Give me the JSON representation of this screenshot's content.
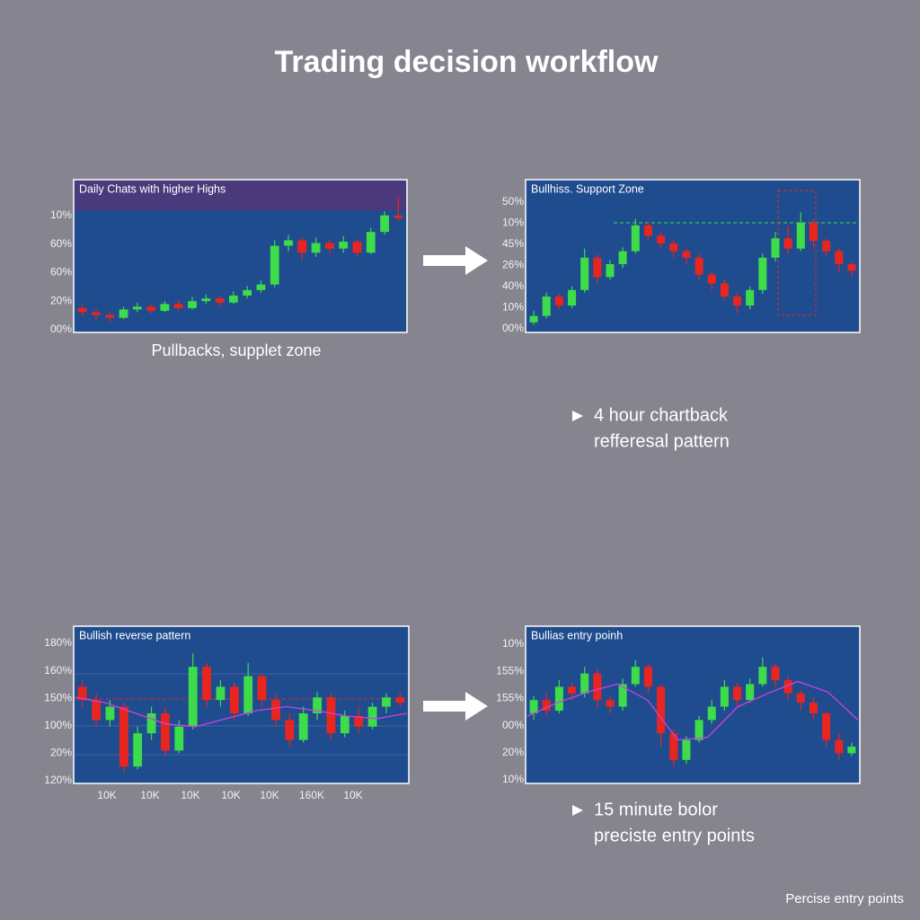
{
  "title": "Trading decision workflow",
  "panels": [
    {
      "title": "Daily Chats with higher Highs",
      "axis_labels": [
        "10%",
        "60%",
        "60%",
        "20%",
        "00%"
      ],
      "caption": "Pullbacks, supplet zone",
      "ylim": [
        0,
        100
      ],
      "candles": [
        [
          15,
          12,
          18,
          9
        ],
        [
          12,
          10,
          14,
          7
        ],
        [
          10,
          8,
          12,
          5
        ],
        [
          8,
          14,
          16,
          7
        ],
        [
          14,
          16,
          19,
          12
        ],
        [
          16,
          13,
          18,
          11
        ],
        [
          13,
          18,
          20,
          12
        ],
        [
          18,
          15,
          21,
          13
        ],
        [
          15,
          20,
          23,
          14
        ],
        [
          20,
          22,
          25,
          18
        ],
        [
          22,
          19,
          24,
          16
        ],
        [
          19,
          24,
          27,
          18
        ],
        [
          24,
          28,
          31,
          22
        ],
        [
          28,
          32,
          35,
          26
        ],
        [
          32,
          60,
          64,
          30
        ],
        [
          60,
          64,
          68,
          56
        ],
        [
          64,
          55,
          66,
          50
        ],
        [
          55,
          62,
          66,
          52
        ],
        [
          62,
          58,
          65,
          54
        ],
        [
          58,
          63,
          67,
          55
        ],
        [
          63,
          55,
          65,
          52
        ],
        [
          55,
          70,
          73,
          54
        ],
        [
          70,
          82,
          85,
          68
        ],
        [
          82,
          80,
          95,
          78
        ]
      ]
    },
    {
      "title": "Bullhiss. Support Zone",
      "axis_labels": [
        "50%",
        "10%",
        "45%",
        "26%",
        "40%",
        "10%",
        "00%"
      ],
      "ylim": [
        0,
        100
      ],
      "candles": [
        [
          5,
          10,
          14,
          3
        ],
        [
          10,
          25,
          28,
          8
        ],
        [
          25,
          18,
          27,
          15
        ],
        [
          18,
          30,
          33,
          16
        ],
        [
          30,
          55,
          62,
          28
        ],
        [
          55,
          40,
          58,
          35
        ],
        [
          40,
          50,
          53,
          38
        ],
        [
          50,
          60,
          63,
          47
        ],
        [
          60,
          80,
          85,
          58
        ],
        [
          80,
          72,
          83,
          68
        ],
        [
          72,
          66,
          75,
          62
        ],
        [
          66,
          60,
          69,
          55
        ],
        [
          60,
          55,
          62,
          50
        ],
        [
          55,
          42,
          58,
          38
        ],
        [
          42,
          35,
          45,
          30
        ],
        [
          35,
          25,
          38,
          22
        ],
        [
          25,
          18,
          28,
          12
        ],
        [
          18,
          30,
          33,
          15
        ],
        [
          30,
          55,
          58,
          27
        ],
        [
          55,
          70,
          75,
          52
        ],
        [
          70,
          62,
          80,
          58
        ],
        [
          62,
          82,
          90,
          60
        ],
        [
          82,
          68,
          85,
          62
        ],
        [
          68,
          60,
          70,
          56
        ],
        [
          60,
          50,
          62,
          44
        ],
        [
          50,
          45,
          52,
          40
        ]
      ]
    },
    {
      "title": "Bullish reverse pattern",
      "axis_labels": [
        "180%",
        "160%",
        "150%",
        "100%",
        "20%",
        "120%"
      ],
      "x_labels": [
        "10K",
        "10K",
        "10K",
        "10K",
        "10K",
        "160K",
        "10K"
      ],
      "ylim": [
        0,
        100
      ],
      "candles": [
        [
          70,
          60,
          75,
          55
        ],
        [
          60,
          45,
          65,
          40
        ],
        [
          45,
          55,
          60,
          40
        ],
        [
          55,
          10,
          58,
          5
        ],
        [
          10,
          35,
          40,
          8
        ],
        [
          35,
          50,
          55,
          30
        ],
        [
          50,
          22,
          55,
          18
        ],
        [
          22,
          40,
          45,
          20
        ],
        [
          40,
          85,
          95,
          38
        ],
        [
          85,
          60,
          88,
          55
        ],
        [
          60,
          70,
          75,
          55
        ],
        [
          70,
          50,
          73,
          45
        ],
        [
          50,
          78,
          88,
          48
        ],
        [
          78,
          60,
          80,
          55
        ],
        [
          60,
          45,
          65,
          40
        ],
        [
          45,
          30,
          50,
          25
        ],
        [
          30,
          50,
          55,
          28
        ],
        [
          50,
          62,
          66,
          45
        ],
        [
          62,
          35,
          65,
          30
        ],
        [
          35,
          48,
          52,
          32
        ],
        [
          48,
          40,
          55,
          35
        ],
        [
          40,
          55,
          58,
          38
        ],
        [
          55,
          62,
          65,
          50
        ],
        [
          62,
          58,
          66,
          55
        ]
      ],
      "ma": [
        62,
        58,
        50,
        42,
        40,
        46,
        52,
        55,
        52,
        48,
        46,
        50
      ]
    },
    {
      "title": "Bullias entry poinh",
      "axis_labels": [
        "10%",
        "155%",
        "155%",
        "00%",
        "20%",
        "10%"
      ],
      "ylim": [
        0,
        100
      ],
      "candles": [
        [
          50,
          60,
          63,
          45
        ],
        [
          60,
          52,
          65,
          48
        ],
        [
          52,
          70,
          75,
          50
        ],
        [
          70,
          65,
          73,
          60
        ],
        [
          65,
          80,
          85,
          62
        ],
        [
          80,
          60,
          83,
          55
        ],
        [
          60,
          55,
          63,
          50
        ],
        [
          55,
          72,
          76,
          52
        ],
        [
          72,
          85,
          90,
          70
        ],
        [
          85,
          70,
          88,
          65
        ],
        [
          70,
          35,
          72,
          25
        ],
        [
          35,
          15,
          38,
          10
        ],
        [
          15,
          30,
          33,
          12
        ],
        [
          30,
          45,
          48,
          28
        ],
        [
          45,
          55,
          60,
          42
        ],
        [
          55,
          70,
          75,
          52
        ],
        [
          70,
          60,
          73,
          55
        ],
        [
          60,
          72,
          76,
          58
        ],
        [
          72,
          85,
          92,
          70
        ],
        [
          85,
          75,
          88,
          70
        ],
        [
          75,
          65,
          78,
          60
        ],
        [
          65,
          58,
          68,
          52
        ],
        [
          58,
          50,
          62,
          45
        ],
        [
          50,
          30,
          52,
          25
        ],
        [
          30,
          20,
          35,
          15
        ],
        [
          20,
          25,
          28,
          18
        ]
      ],
      "ma": [
        48,
        58,
        66,
        72,
        60,
        30,
        32,
        55,
        65,
        74,
        66,
        45
      ]
    }
  ],
  "notes": [
    [
      "4 hour chartback",
      "refferesal pattern"
    ],
    [
      "15 minute bolor",
      "preciste entry points"
    ]
  ],
  "footer": "Percise entry points"
}
